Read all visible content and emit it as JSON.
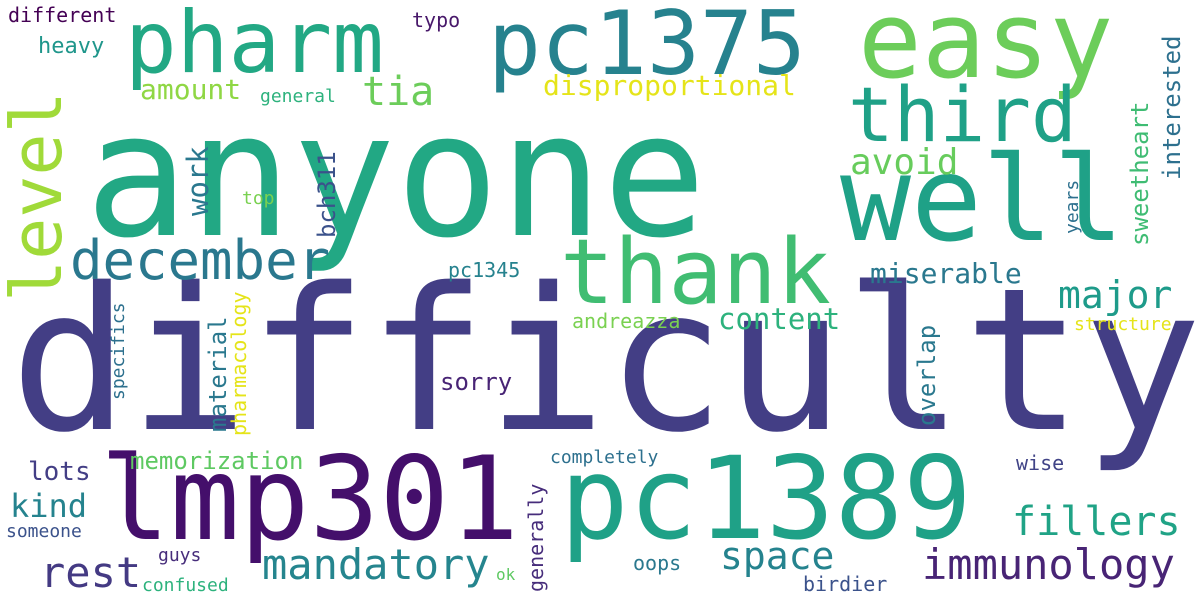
{
  "colors": {
    "background": "#ffffff",
    "palette": [
      "#440154",
      "#482878",
      "#3e4989",
      "#31688e",
      "#26828e",
      "#1f9e89",
      "#35b779",
      "#6ece58",
      "#b5de2b",
      "#fde725"
    ]
  },
  "words": [
    {
      "text": "anyone",
      "color": "#22a884"
    },
    {
      "text": "difficulty",
      "color": "#433e85"
    },
    {
      "text": "lmp301",
      "color": "#440f6b"
    },
    {
      "text": "pc1389",
      "color": "#1fa187"
    },
    {
      "text": "easy",
      "color": "#6ccd5a"
    },
    {
      "text": "pc1375",
      "color": "#26828e"
    },
    {
      "text": "pharm",
      "color": "#22a884"
    },
    {
      "text": "well",
      "color": "#1fa187"
    },
    {
      "text": "thank",
      "color": "#40bd72"
    },
    {
      "text": "third",
      "color": "#1fa187"
    },
    {
      "text": "level",
      "color": "#a0da39"
    },
    {
      "text": "december",
      "color": "#2a788e"
    },
    {
      "text": "mandatory",
      "color": "#25858e"
    },
    {
      "text": "immunology",
      "color": "#482475"
    },
    {
      "text": "fillers",
      "color": "#20a386"
    },
    {
      "text": "rest",
      "color": "#443a83"
    },
    {
      "text": "space",
      "color": "#25838e"
    },
    {
      "text": "major",
      "color": "#1e9b8a"
    },
    {
      "text": "disproportional",
      "color": "#e5e419"
    },
    {
      "text": "tia",
      "color": "#6ccd5a"
    },
    {
      "text": "avoid",
      "color": "#67cc5c"
    },
    {
      "text": "content",
      "color": "#2db27d"
    },
    {
      "text": "miserable",
      "color": "#2a788e"
    },
    {
      "text": "amount",
      "color": "#8fd744"
    },
    {
      "text": "work",
      "color": "#2a788e"
    },
    {
      "text": "bch311",
      "color": "#3b528b"
    },
    {
      "text": "interested",
      "color": "#2d708e"
    },
    {
      "text": "sweetheart",
      "color": "#3fbc73"
    },
    {
      "text": "kind",
      "color": "#25838e"
    },
    {
      "text": "andreazza",
      "color": "#7ad151"
    },
    {
      "text": "pc1345",
      "color": "#26828e"
    },
    {
      "text": "sorry",
      "color": "#482475"
    },
    {
      "text": "overlap",
      "color": "#2a788e"
    },
    {
      "text": "memorization",
      "color": "#5ec962"
    },
    {
      "text": "material",
      "color": "#2a788e"
    },
    {
      "text": "pharmacology",
      "color": "#e5e419"
    },
    {
      "text": "lots",
      "color": "#433e85"
    },
    {
      "text": "heavy",
      "color": "#1f968b"
    },
    {
      "text": "different",
      "color": "#440154"
    },
    {
      "text": "typo",
      "color": "#48186a"
    },
    {
      "text": "general",
      "color": "#2db27d"
    },
    {
      "text": "top",
      "color": "#7ad151"
    },
    {
      "text": "years",
      "color": "#2d708e"
    },
    {
      "text": "specifics",
      "color": "#2d708e"
    },
    {
      "text": "structure",
      "color": "#e5e419"
    },
    {
      "text": "completely",
      "color": "#2d708e"
    },
    {
      "text": "generally",
      "color": "#472d7b"
    },
    {
      "text": "wise",
      "color": "#414487"
    },
    {
      "text": "someone",
      "color": "#3b528b"
    },
    {
      "text": "guys",
      "color": "#472d7b"
    },
    {
      "text": "confused",
      "color": "#2db27d"
    },
    {
      "text": "ok",
      "color": "#5ec962"
    },
    {
      "text": "oops",
      "color": "#2a788e"
    },
    {
      "text": "birdier",
      "color": "#3b528b"
    }
  ]
}
